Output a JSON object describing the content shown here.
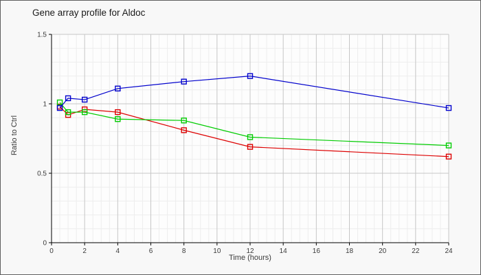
{
  "window": {
    "background": "#f8f8f8",
    "border_color": "#5e5e5e",
    "plot_background": "#fdfdfd",
    "grid_major_color": "#c6c6c6",
    "grid_minor_color": "#ededed",
    "axis_color": "#000000",
    "tick_label_color": "#3a3a3a",
    "title_color": "#1a1a1a"
  },
  "chart_data": {
    "type": "line",
    "title": "Gene array profile for Aldoc",
    "xlabel": "Time (hours)",
    "ylabel": "Ratio to Ctrl",
    "xlim": [
      0,
      24
    ],
    "ylim": [
      0,
      1.5
    ],
    "x_major_ticks": [
      0,
      2,
      4,
      6,
      8,
      10,
      12,
      14,
      16,
      18,
      20,
      22,
      24
    ],
    "x_minor_step": 0.5,
    "y_major_ticks": [
      0,
      0.5,
      1,
      1.5
    ],
    "y_tick_labels": [
      "0",
      "0.5",
      "1",
      "1.5"
    ],
    "y_minor_step": 0.1,
    "grid": true,
    "legend": "none",
    "marker": "open-square",
    "x": [
      0.5,
      1,
      2,
      4,
      8,
      12,
      24
    ],
    "series": [
      {
        "name": "red-series",
        "color": "#dd0000",
        "values": [
          0.98,
          0.92,
          0.96,
          0.94,
          0.81,
          0.69,
          0.62
        ]
      },
      {
        "name": "green-series",
        "color": "#00cc00",
        "values": [
          1.01,
          0.94,
          0.94,
          0.89,
          0.88,
          0.76,
          0.7
        ]
      },
      {
        "name": "blue-series",
        "color": "#0000cc",
        "values": [
          0.97,
          1.04,
          1.03,
          1.11,
          1.16,
          1.2,
          0.97
        ]
      }
    ]
  }
}
